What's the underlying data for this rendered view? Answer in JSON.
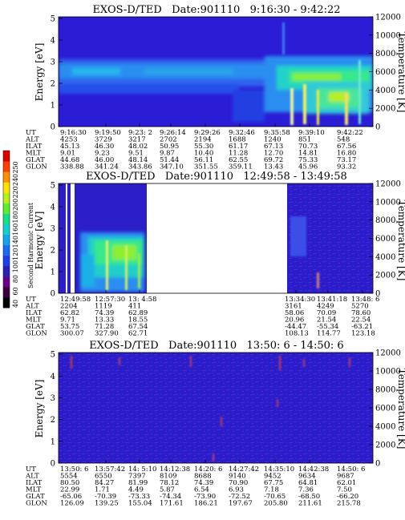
{
  "colorbar": {
    "label": "Second Harmonic Current",
    "ticks": [
      "40",
      "60",
      "80",
      "100",
      "120",
      "140",
      "160",
      "180",
      "200",
      "220",
      "240",
      "250"
    ],
    "colors": [
      "#000000",
      "#3a0040",
      "#6a0088",
      "#2a1fb8",
      "#1f3ef0",
      "#1f6cf4",
      "#14a6ec",
      "#10d0d0",
      "#18e08a",
      "#5fef2a",
      "#b7f018",
      "#ffe000",
      "#ff9000",
      "#ff4000",
      "#e00000"
    ]
  },
  "row_labels": [
    "UT",
    "ALT",
    "ILAT",
    "MLT",
    "GLAT",
    "GLON"
  ],
  "panels": [
    {
      "title": "EXOS-D/TED   Date:901110   9:16:30 - 9:42:22",
      "ylabel": "Energy [eV]",
      "ylabel_right": "Temperature [K]",
      "yticks_left": [
        "0",
        "1",
        "2",
        "3",
        "4",
        "5"
      ],
      "yticks_right": [
        "0",
        "2000",
        "4000",
        "6000",
        "8000",
        "10000",
        "12000"
      ],
      "columns": [
        [
          "9:16:30",
          "4253",
          "45.13",
          "9.01",
          "44.68",
          "338.88"
        ],
        [
          "9:19:50",
          "3729",
          "46.30",
          "9.23",
          "46.00",
          "341.24"
        ],
        [
          "9:23: 2",
          "3217",
          "48.02",
          "9.51",
          "48.14",
          "343.86"
        ],
        [
          "9:26:14",
          "2702",
          "50.95",
          "9.87",
          "51.44",
          "347.10"
        ],
        [
          "9:29:26",
          "2194",
          "55.30",
          "10.40",
          "56.11",
          "351.55"
        ],
        [
          "9:32:46",
          "1688",
          "61.17",
          "11.28",
          "62.55",
          "359.11"
        ],
        [
          "9:35:58",
          "1240",
          "67.13",
          "12.70",
          "69.72",
          "13.43"
        ],
        [
          "9:39:10",
          "851",
          "70.73",
          "14.81",
          "75.33",
          "45.96"
        ],
        [
          "9:42:22",
          "548",
          "67.56",
          "16.80",
          "73.17",
          "93.32"
        ]
      ]
    },
    {
      "title": "EXOS-D/TED   Date:901110   12:49:58 - 13:49:58",
      "ylabel": "Energy [eV]",
      "ylabel_right": "Temperature [K]",
      "yticks_left": [
        "0",
        "1",
        "2",
        "3",
        "4",
        "5"
      ],
      "yticks_right": [
        "0",
        "2000",
        "4000",
        "6000",
        "8000",
        "10000",
        "12000"
      ],
      "columns": [
        [
          "12:49:58",
          "2204",
          "62.82",
          "9.71",
          "53.75",
          "300.07"
        ],
        [
          "12:57:30",
          "1119",
          "74.39",
          "13.33",
          "71.28",
          "327.90"
        ],
        [
          "13: 4:58",
          "411",
          "62.89",
          "18.55",
          "67.54",
          "62.71"
        ],
        [
          "13:34:30",
          "3161",
          "58.06",
          "20.96",
          "-44.47",
          "108.13"
        ],
        [
          "13:41:18",
          "4249",
          "70.09",
          "21.54",
          "-55.34",
          "114.77"
        ],
        [
          "13:48: 6",
          "5270",
          "78.60",
          "22.54",
          "-63.21",
          "123.18"
        ]
      ]
    },
    {
      "title": "EXOS-D/TED   Date:901110   13:50: 6 - 14:50: 6",
      "ylabel": "Energy [eV]",
      "ylabel_right": "Temperature [K]",
      "yticks_left": [
        "0",
        "1",
        "2",
        "3",
        "4",
        "5"
      ],
      "yticks_right": [
        "0",
        "2000",
        "4000",
        "6000",
        "8000",
        "10000",
        "12000"
      ],
      "columns": [
        [
          "13:50: 6",
          "5554",
          "80.50",
          "22.99",
          "-65.06",
          "126.09"
        ],
        [
          "13:57:42",
          "6550",
          "84.27",
          "1.71",
          "-70.39",
          "139.25"
        ],
        [
          "14: 5:10",
          "7397",
          "81.99",
          "4.49",
          "-73.33",
          "155.04"
        ],
        [
          "14:12:38",
          "8109",
          "78.12",
          "5.87",
          "-74.34",
          "171.61"
        ],
        [
          "14:20: 6",
          "8688",
          "74.39",
          "6.54",
          "-73.90",
          "186.21"
        ],
        [
          "14:27:42",
          "9140",
          "70.90",
          "6.93",
          "-72.52",
          "197.67"
        ],
        [
          "14:35:10",
          "9452",
          "67.75",
          "7.18",
          "-70.65",
          "205.80"
        ],
        [
          "14:42:38",
          "9634",
          "64.81",
          "7.36",
          "-68.50",
          "211.61"
        ],
        [
          "14:50: 6",
          "9687",
          "62.01",
          "7.50",
          "-66.20",
          "215.78"
        ]
      ]
    }
  ],
  "chart_data": [
    {
      "type": "heatmap",
      "title": "EXOS-D/TED   Date:901110   9:16:30 - 9:42:22",
      "xlabel": "UT",
      "ylabel": "Energy [eV]",
      "ylabel_right": "Temperature [K]",
      "xlim": [
        "9:16:30",
        "9:42:22"
      ],
      "ylim": [
        0,
        5
      ],
      "ylim_right": [
        0,
        12000
      ],
      "colorbar_label": "Second Harmonic Current",
      "colorbar_range": [
        40,
        250
      ],
      "bands": [
        {
          "ut_range": [
            "9:16:30",
            "9:35:58"
          ],
          "energy_eV": [
            1.5,
            3.3
          ],
          "level": "elevated"
        },
        {
          "ut_range": [
            "9:35:58",
            "9:42:22"
          ],
          "energy_eV": [
            0,
            3.5
          ],
          "level": "high"
        }
      ]
    },
    {
      "type": "heatmap",
      "title": "EXOS-D/TED   Date:901110   12:49:58 - 13:49:58",
      "xlabel": "UT",
      "ylabel": "Energy [eV]",
      "ylabel_right": "Temperature [K]",
      "xlim": [
        "12:49:58",
        "13:49:58"
      ],
      "ylim": [
        0,
        5
      ],
      "ylim_right": [
        0,
        12000
      ],
      "colorbar_label": "Second Harmonic Current",
      "colorbar_range": [
        40,
        250
      ],
      "data_gaps": [
        [
          "13: 4:58",
          "13:34:30"
        ]
      ],
      "bands": [
        {
          "ut_range": [
            "12:49:58",
            "13: 4:58"
          ],
          "energy_eV": [
            0.3,
            2.5
          ],
          "level": "high"
        }
      ]
    },
    {
      "type": "heatmap",
      "title": "EXOS-D/TED   Date:901110   13:50: 6 - 14:50: 6",
      "xlabel": "UT",
      "ylabel": "Energy [eV]",
      "ylabel_right": "Temperature [K]",
      "xlim": [
        "13:50: 6",
        "14:50: 6"
      ],
      "ylim": [
        0,
        5
      ],
      "ylim_right": [
        0,
        12000
      ],
      "colorbar_label": "Second Harmonic Current",
      "colorbar_range": [
        40,
        250
      ],
      "bands": []
    }
  ]
}
